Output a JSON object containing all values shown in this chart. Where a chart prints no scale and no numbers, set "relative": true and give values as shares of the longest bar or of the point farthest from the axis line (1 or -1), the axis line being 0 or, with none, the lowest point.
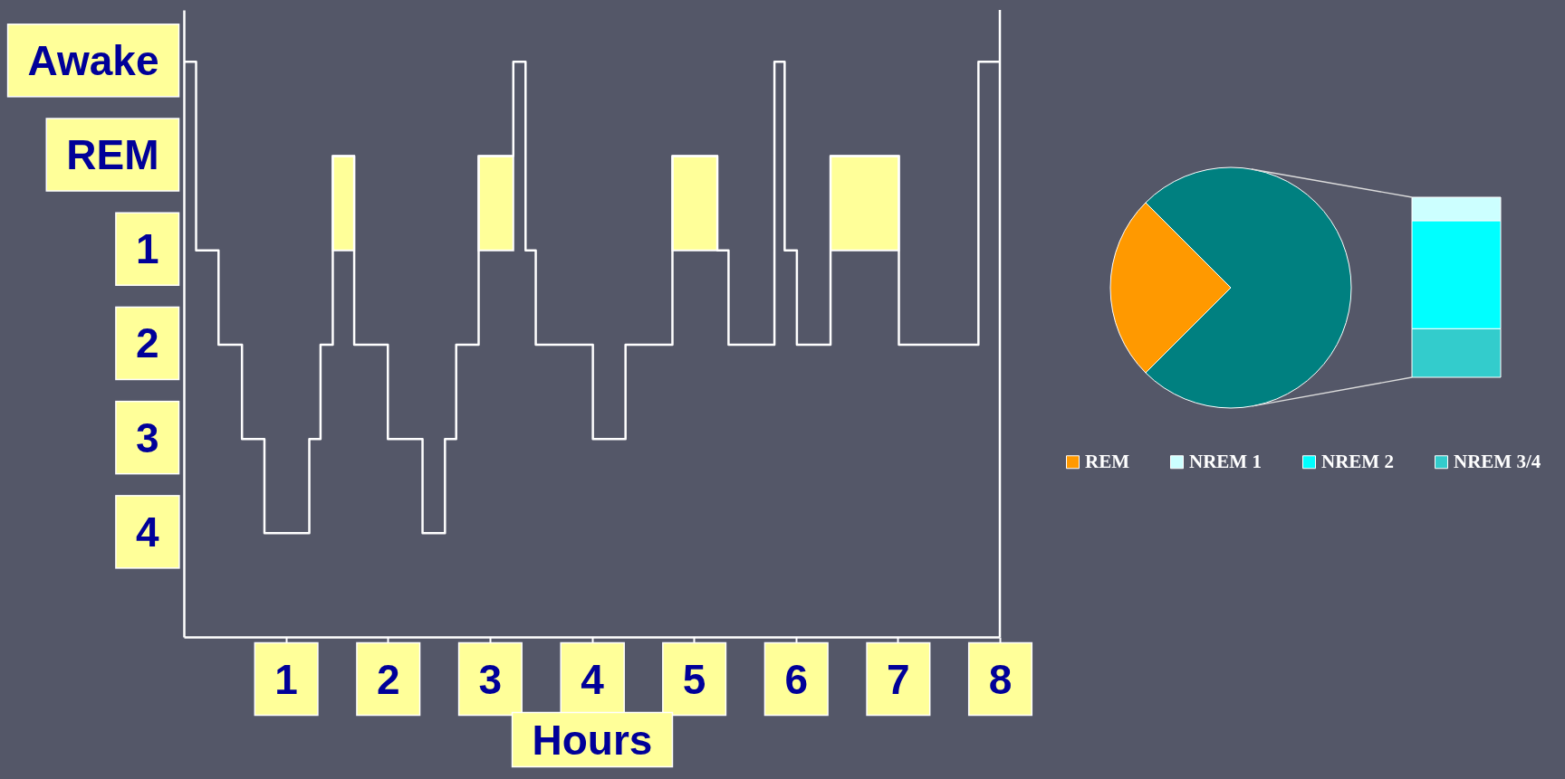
{
  "chart_data": [
    {
      "type": "step",
      "xlabel": "Hours",
      "x": [
        0,
        0.12,
        0.34,
        0.57,
        0.79,
        1.23,
        1.34,
        1.46,
        1.67,
        2.0,
        2.34,
        2.56,
        2.67,
        2.89,
        3.23,
        3.35,
        3.45,
        4.01,
        4.33,
        4.79,
        5.23,
        5.34,
        5.79,
        5.89,
        6.01,
        6.34,
        7.01,
        7.79,
        8
      ],
      "series": [
        {
          "color": "#ffffff",
          "values": [
            -1,
            1,
            2,
            3,
            4,
            3,
            2,
            0,
            2,
            3,
            4,
            3,
            2,
            0,
            -1,
            1,
            2,
            3,
            2,
            0,
            1,
            2,
            -1,
            1,
            2,
            0,
            2,
            -1,
            -1
          ]
        },
        {
          "color": "#ffff99",
          "values": [
            null,
            null,
            null,
            null,
            null,
            null,
            null,
            null,
            null,
            null,
            null,
            null,
            null,
            null,
            null,
            null,
            null,
            null,
            null,
            null,
            null,
            null,
            null,
            null,
            null,
            null,
            null,
            null,
            null
          ],
          "lower": [
            null,
            null,
            null,
            null,
            null,
            null,
            null,
            1,
            1,
            null,
            null,
            null,
            null,
            1,
            1,
            null,
            null,
            null,
            null,
            1,
            1,
            null,
            null,
            null,
            null,
            1,
            1,
            null,
            null
          ],
          "upper": [
            null,
            null,
            null,
            null,
            null,
            null,
            null,
            0,
            0,
            null,
            null,
            null,
            null,
            0,
            0,
            null,
            null,
            null,
            null,
            0,
            0,
            null,
            null,
            null,
            null,
            0,
            0,
            null,
            null
          ]
        }
      ],
      "xlim": [
        0,
        8
      ],
      "xticks": [
        1,
        2,
        3,
        4,
        5,
        6,
        7,
        8
      ],
      "ylim": [
        5.1,
        -1.55
      ],
      "yticks": [
        {
          "value": -1,
          "label": "Awake"
        },
        {
          "value": 0,
          "label": "REM"
        },
        1,
        2,
        3,
        4
      ],
      "ref_lines": [
        {
          "axis": "x",
          "value": 8,
          "color": "#ffffff"
        }
      ],
      "line_style": "solid"
    },
    {
      "type": "pie",
      "categories": [
        "REM",
        null
      ],
      "values": [
        25,
        75
      ],
      "colors": [
        "#ff9900",
        "#008080"
      ],
      "legend": "bottom"
    },
    {
      "type": "bar",
      "stacked": true,
      "relative": true,
      "categories": [
        null
      ],
      "series": [
        {
          "name": "NREM 3/4",
          "color": "#33cccc",
          "values": [
            0.27
          ]
        },
        {
          "name": "NREM 2",
          "color": "#00ffff",
          "values": [
            0.6
          ]
        },
        {
          "name": "NREM 1",
          "color": "#ccffff",
          "values": [
            0.13
          ]
        }
      ],
      "legend": "bottom"
    }
  ]
}
